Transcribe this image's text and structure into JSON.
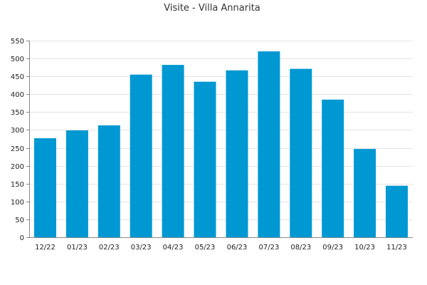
{
  "chart_data": {
    "type": "bar",
    "title": "Visite - Villa Annarita",
    "xlabel": "",
    "ylabel": "",
    "categories": [
      "12/22",
      "01/23",
      "02/23",
      "03/23",
      "04/23",
      "05/23",
      "06/23",
      "07/23",
      "08/23",
      "09/23",
      "10/23",
      "11/23"
    ],
    "values": [
      277,
      299,
      313,
      455,
      482,
      435,
      467,
      520,
      471,
      385,
      247,
      144
    ],
    "ylim": [
      0,
      550
    ],
    "yticks": [
      0,
      50,
      100,
      150,
      200,
      250,
      300,
      350,
      400,
      450,
      500,
      550
    ],
    "grid": true,
    "legend": "none",
    "bar_color": "#0098d2"
  }
}
